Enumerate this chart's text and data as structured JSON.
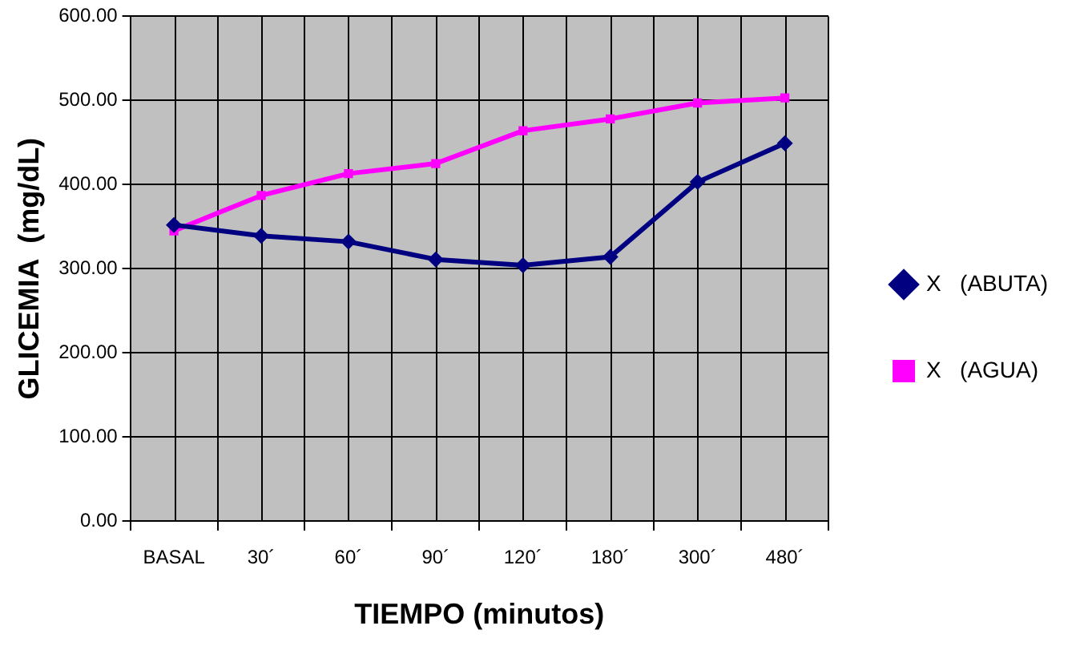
{
  "chart_data": {
    "type": "line",
    "xlabel": "TIEMPO (minutos)",
    "ylabel": "GLICEMIA  (mg/dL)",
    "categories": [
      "BASAL",
      "30´",
      "60´",
      "90´",
      "120´",
      "180´",
      "300´",
      "480´"
    ],
    "series": [
      {
        "name": "X   (ABUTA)",
        "color": "#000080",
        "marker": "diamond",
        "values": [
          352,
          339,
          332,
          311,
          304,
          314,
          403,
          449
        ]
      },
      {
        "name": "X   (AGUA)",
        "color": "#ff00ff",
        "marker": "square",
        "values": [
          345,
          387,
          413,
          425,
          464,
          478,
          497,
          503
        ]
      }
    ],
    "ylim": [
      0,
      600
    ],
    "yticks": [
      {
        "value": 0,
        "label": "0.00"
      },
      {
        "value": 100,
        "label": "100.00"
      },
      {
        "value": 200,
        "label": "200.00"
      },
      {
        "value": 300,
        "label": "300.00"
      },
      {
        "value": 400,
        "label": "400.00"
      },
      {
        "value": 500,
        "label": "500.00"
      },
      {
        "value": 600,
        "label": "600.00"
      }
    ],
    "grid": true,
    "legend": "right"
  }
}
